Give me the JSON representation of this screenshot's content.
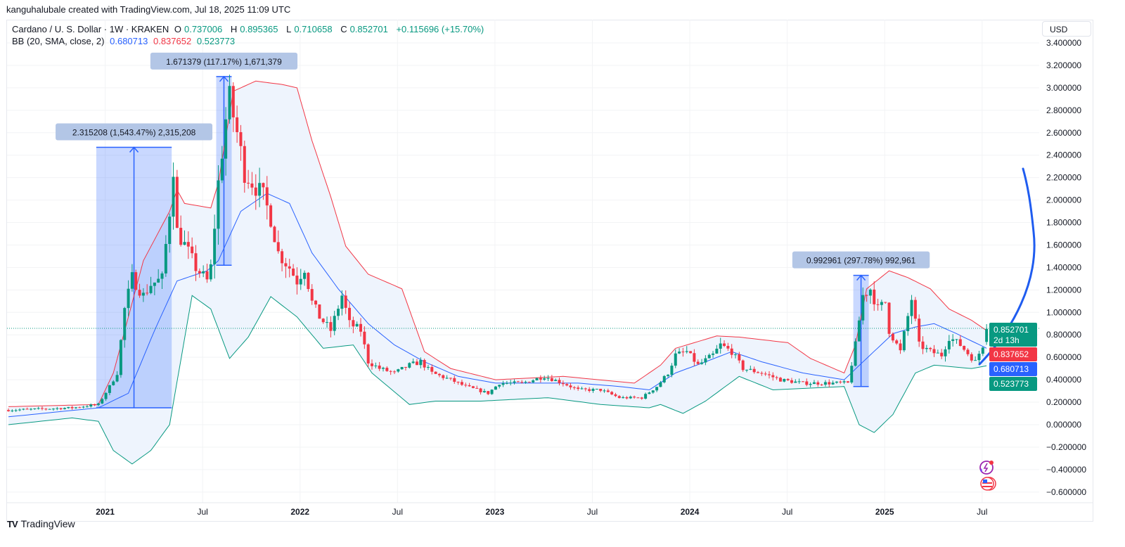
{
  "credit": "kanguhalubale created with TradingView.com, Jul 18, 2025 11:09 UTC",
  "legend": {
    "symbol": "Cardano / U. S. Dollar · 1W · KRAKEN",
    "o_label": "O",
    "o": "0.737006",
    "h_label": "H",
    "h": "0.895365",
    "l_label": "L",
    "l": "0.710658",
    "c_label": "C",
    "c": "0.852701",
    "change": "+0.115696 (+15.70%)",
    "bb_label": "BB (20, SMA, close, 2)",
    "bb_basis": "0.680713",
    "bb_upper": "0.837652",
    "bb_lower": "0.523773"
  },
  "currency": "USD",
  "brand": "TradingView",
  "colors": {
    "up": "#089981",
    "down": "#f23645",
    "basis": "#2962ff",
    "upper": "#f23645",
    "lower": "#089981",
    "band_fill": "#eef4fd",
    "measure": "#2962ff"
  },
  "chart_data": {
    "type": "candlestick",
    "title": "Cardano / U. S. Dollar · 1W · KRAKEN",
    "x_unit": "week index (week 0 ≈ Jul 2020)",
    "ylim": [
      -0.6,
      3.4
    ],
    "y_ticks": [
      "3.400000",
      "3.200000",
      "3.000000",
      "2.800000",
      "2.600000",
      "2.400000",
      "2.200000",
      "2.000000",
      "1.800000",
      "1.600000",
      "1.400000",
      "1.200000",
      "1.000000",
      "0.800000",
      "0.600000",
      "0.400000",
      "0.200000",
      "0.000000",
      "−0.200000",
      "−0.400000",
      "−0.600000"
    ],
    "y_tick_values": [
      3.4,
      3.2,
      3.0,
      2.8,
      2.6,
      2.4,
      2.2,
      2.0,
      1.8,
      1.6,
      1.4,
      1.2,
      1.0,
      0.8,
      0.6,
      0.4,
      0.2,
      0.0,
      -0.2,
      -0.4,
      -0.6
    ],
    "x_ticks": [
      {
        "label": "2021",
        "week": 26,
        "bold": true
      },
      {
        "label": "Jul",
        "week": 52
      },
      {
        "label": "2022",
        "week": 78,
        "bold": true
      },
      {
        "label": "Jul",
        "week": 104
      },
      {
        "label": "2023",
        "week": 130,
        "bold": true
      },
      {
        "label": "Jul",
        "week": 156
      },
      {
        "label": "2024",
        "week": 182,
        "bold": true
      },
      {
        "label": "Jul",
        "week": 208
      },
      {
        "label": "2025",
        "week": 234,
        "bold": true
      },
      {
        "label": "Jul",
        "week": 260
      }
    ],
    "close_path": [
      [
        0,
        0.13
      ],
      [
        17,
        0.15
      ],
      [
        24,
        0.18
      ],
      [
        27,
        0.34
      ],
      [
        29,
        0.46
      ],
      [
        31,
        1.03
      ],
      [
        33,
        1.31
      ],
      [
        36,
        1.15
      ],
      [
        38,
        1.25
      ],
      [
        41,
        1.3
      ],
      [
        43,
        1.9
      ],
      [
        44,
        2.3
      ],
      [
        45,
        1.72
      ],
      [
        47,
        1.6
      ],
      [
        50,
        1.4
      ],
      [
        53,
        1.28
      ],
      [
        54,
        1.4
      ],
      [
        56,
        2.15
      ],
      [
        58,
        2.72
      ],
      [
        59,
        2.9
      ],
      [
        61,
        2.6
      ],
      [
        63,
        2.25
      ],
      [
        66,
        2.12
      ],
      [
        68,
        2.03
      ],
      [
        70,
        1.84
      ],
      [
        72,
        1.53
      ],
      [
        75,
        1.4
      ],
      [
        77,
        1.28
      ],
      [
        79,
        1.4
      ],
      [
        81,
        1.09
      ],
      [
        83,
        0.96
      ],
      [
        86,
        0.84
      ],
      [
        89,
        1.15
      ],
      [
        91,
        0.9
      ],
      [
        94,
        0.84
      ],
      [
        96,
        0.56
      ],
      [
        99,
        0.5
      ],
      [
        103,
        0.46
      ],
      [
        107,
        0.53
      ],
      [
        110,
        0.56
      ],
      [
        113,
        0.46
      ],
      [
        118,
        0.4
      ],
      [
        122,
        0.34
      ],
      [
        128,
        0.28
      ],
      [
        131,
        0.37
      ],
      [
        137,
        0.37
      ],
      [
        143,
        0.43
      ],
      [
        148,
        0.37
      ],
      [
        152,
        0.31
      ],
      [
        158,
        0.31
      ],
      [
        163,
        0.24
      ],
      [
        169,
        0.24
      ],
      [
        173,
        0.34
      ],
      [
        176,
        0.46
      ],
      [
        178,
        0.62
      ],
      [
        181,
        0.65
      ],
      [
        184,
        0.53
      ],
      [
        188,
        0.62
      ],
      [
        190,
        0.71
      ],
      [
        193,
        0.65
      ],
      [
        196,
        0.5
      ],
      [
        201,
        0.46
      ],
      [
        206,
        0.4
      ],
      [
        212,
        0.37
      ],
      [
        218,
        0.37
      ],
      [
        224,
        0.37
      ],
      [
        226,
        0.71
      ],
      [
        228,
        1.15
      ],
      [
        230,
        1.21
      ],
      [
        232,
        1.03
      ],
      [
        234,
        1.09
      ],
      [
        235,
        0.84
      ],
      [
        238,
        0.65
      ],
      [
        241,
        1.12
      ],
      [
        243,
        0.71
      ],
      [
        246,
        0.65
      ],
      [
        249,
        0.62
      ],
      [
        251,
        0.78
      ],
      [
        254,
        0.71
      ],
      [
        258,
        0.56
      ],
      [
        260,
        0.71
      ],
      [
        261,
        0.8527
      ]
    ],
    "bb_upper_path": [
      [
        0,
        0.16
      ],
      [
        24,
        0.18
      ],
      [
        28,
        0.46
      ],
      [
        36,
        1.46
      ],
      [
        43,
        1.9
      ],
      [
        45,
        2.09
      ],
      [
        47,
        1.97
      ],
      [
        54,
        1.93
      ],
      [
        56,
        2.15
      ],
      [
        60,
        2.97
      ],
      [
        66,
        3.06
      ],
      [
        73,
        3.03
      ],
      [
        77,
        3.0
      ],
      [
        81,
        2.53
      ],
      [
        86,
        2.03
      ],
      [
        90,
        1.59
      ],
      [
        96,
        1.34
      ],
      [
        105,
        1.21
      ],
      [
        111,
        0.65
      ],
      [
        118,
        0.5
      ],
      [
        130,
        0.4
      ],
      [
        148,
        0.43
      ],
      [
        167,
        0.37
      ],
      [
        174,
        0.53
      ],
      [
        178,
        0.68
      ],
      [
        189,
        0.79
      ],
      [
        195,
        0.78
      ],
      [
        208,
        0.73
      ],
      [
        214,
        0.59
      ],
      [
        223,
        0.46
      ],
      [
        226,
        0.71
      ],
      [
        229,
        1.21
      ],
      [
        235,
        1.37
      ],
      [
        240,
        1.31
      ],
      [
        246,
        1.21
      ],
      [
        251,
        1.03
      ],
      [
        257,
        0.93
      ],
      [
        261,
        0.8377
      ]
    ],
    "bb_basis_path": [
      [
        0,
        0.07
      ],
      [
        24,
        0.15
      ],
      [
        32,
        0.28
      ],
      [
        39,
        0.84
      ],
      [
        45,
        1.28
      ],
      [
        53,
        1.37
      ],
      [
        56,
        1.46
      ],
      [
        62,
        1.9
      ],
      [
        69,
        2.06
      ],
      [
        75,
        1.97
      ],
      [
        81,
        1.53
      ],
      [
        88,
        1.21
      ],
      [
        96,
        0.9
      ],
      [
        103,
        0.71
      ],
      [
        111,
        0.56
      ],
      [
        120,
        0.43
      ],
      [
        130,
        0.37
      ],
      [
        141,
        0.37
      ],
      [
        152,
        0.37
      ],
      [
        163,
        0.34
      ],
      [
        171,
        0.31
      ],
      [
        178,
        0.46
      ],
      [
        186,
        0.56
      ],
      [
        193,
        0.65
      ],
      [
        201,
        0.56
      ],
      [
        212,
        0.46
      ],
      [
        223,
        0.4
      ],
      [
        229,
        0.59
      ],
      [
        236,
        0.81
      ],
      [
        242,
        0.87
      ],
      [
        247,
        0.9
      ],
      [
        253,
        0.81
      ],
      [
        261,
        0.6807
      ]
    ],
    "bb_lower_path": [
      [
        0,
        0.0
      ],
      [
        17,
        0.06
      ],
      [
        24,
        0.03
      ],
      [
        28,
        -0.23
      ],
      [
        33,
        -0.35
      ],
      [
        38,
        -0.23
      ],
      [
        43,
        0.0
      ],
      [
        49,
        1.15
      ],
      [
        54,
        1.03
      ],
      [
        59,
        0.59
      ],
      [
        64,
        0.78
      ],
      [
        70,
        1.14
      ],
      [
        77,
        0.96
      ],
      [
        84,
        0.68
      ],
      [
        92,
        0.71
      ],
      [
        97,
        0.46
      ],
      [
        107,
        0.18
      ],
      [
        114,
        0.21
      ],
      [
        126,
        0.21
      ],
      [
        144,
        0.24
      ],
      [
        158,
        0.18
      ],
      [
        171,
        0.15
      ],
      [
        174,
        0.18
      ],
      [
        180,
        0.1
      ],
      [
        186,
        0.21
      ],
      [
        195,
        0.43
      ],
      [
        204,
        0.31
      ],
      [
        223,
        0.34
      ],
      [
        227,
        0.0
      ],
      [
        231,
        -0.07
      ],
      [
        236,
        0.09
      ],
      [
        242,
        0.46
      ],
      [
        247,
        0.53
      ],
      [
        257,
        0.5
      ],
      [
        261,
        0.5238
      ]
    ],
    "measurements": [
      {
        "label": "2.315208 (1,543.47%) 2,315,208",
        "week_from": 24,
        "week_to": 43,
        "price_from": 0.15,
        "price_to": 2.47
      },
      {
        "label": "1.671379 (117.17%) 1,671,379",
        "week_from": 56,
        "week_to": 59,
        "price_from": 1.42,
        "price_to": 3.1
      },
      {
        "label": "0.992961 (297.78%) 992,961",
        "week_from": 226,
        "week_to": 229,
        "price_from": 0.34,
        "price_to": 1.33
      }
    ],
    "price_tags": [
      {
        "value": "0.852701",
        "sub": "2d 13h",
        "color": "#089981"
      },
      {
        "value": "0.837652",
        "color": "#f23645"
      },
      {
        "value": "0.680713",
        "color": "#2962ff"
      },
      {
        "value": "0.523773",
        "color": "#089981"
      }
    ]
  }
}
